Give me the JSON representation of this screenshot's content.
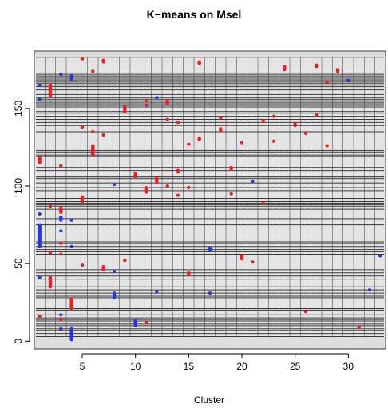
{
  "chart_data": {
    "type": "heatmap",
    "title": "K−means on Msel",
    "xlabel": "Cluster",
    "ylabel": "",
    "xlim": [
      0.5,
      33.5
    ],
    "ylim": [
      -5,
      187
    ],
    "xticks": [
      5,
      10,
      15,
      20,
      25,
      30
    ],
    "yticks": [
      0,
      50,
      100,
      150
    ],
    "grid": true,
    "colors": {
      "background": "#dddddd",
      "panel": "#e4e4e4",
      "line": "#3a3a3a",
      "red": "#e8202a",
      "blue": "#2a35e0"
    },
    "band_edges": [
      3,
      5,
      7,
      8,
      10,
      11,
      13,
      14,
      15,
      17,
      20,
      21,
      28,
      29,
      31,
      33,
      35,
      40,
      42,
      44,
      46,
      56,
      58,
      59,
      61,
      63,
      64,
      75,
      79,
      85,
      87,
      88,
      89,
      90,
      92,
      97,
      99,
      102,
      104,
      105,
      106,
      110,
      112,
      119,
      120,
      122,
      123,
      135,
      139,
      141,
      143,
      145,
      147,
      148,
      151,
      152,
      153,
      154,
      155,
      156,
      157,
      159,
      160,
      162,
      164,
      165,
      166,
      167,
      168,
      169,
      170,
      171,
      172,
      183
    ],
    "marks": [
      {
        "cluster": 1,
        "y0": 16,
        "y1": 16,
        "color": "red"
      },
      {
        "cluster": 1,
        "y0": 41,
        "y1": 41,
        "color": "blue"
      },
      {
        "cluster": 1,
        "y0": 61,
        "y1": 75,
        "color": "blue"
      },
      {
        "cluster": 1,
        "y0": 82,
        "y1": 82,
        "color": "blue"
      },
      {
        "cluster": 1,
        "y0": 115,
        "y1": 118,
        "color": "red"
      },
      {
        "cluster": 1,
        "y0": 156,
        "y1": 156,
        "color": "blue"
      },
      {
        "cluster": 1,
        "y0": 165,
        "y1": 165,
        "color": "blue"
      },
      {
        "cluster": 2,
        "y0": 35,
        "y1": 41,
        "color": "red"
      },
      {
        "cluster": 2,
        "y0": 57,
        "y1": 57,
        "color": "red"
      },
      {
        "cluster": 2,
        "y0": 87,
        "y1": 87,
        "color": "red"
      },
      {
        "cluster": 2,
        "y0": 158,
        "y1": 165,
        "color": "red"
      },
      {
        "cluster": 3,
        "y0": 8,
        "y1": 8,
        "color": "blue"
      },
      {
        "cluster": 3,
        "y0": 14,
        "y1": 14,
        "color": "red"
      },
      {
        "cluster": 3,
        "y0": 17,
        "y1": 17,
        "color": "blue"
      },
      {
        "cluster": 3,
        "y0": 56,
        "y1": 56,
        "color": "red"
      },
      {
        "cluster": 3,
        "y0": 63,
        "y1": 63,
        "color": "red"
      },
      {
        "cluster": 3,
        "y0": 71,
        "y1": 71,
        "color": "blue"
      },
      {
        "cluster": 3,
        "y0": 78,
        "y1": 80,
        "color": "blue"
      },
      {
        "cluster": 3,
        "y0": 83,
        "y1": 86,
        "color": "red"
      },
      {
        "cluster": 3,
        "y0": 113,
        "y1": 113,
        "color": "red"
      },
      {
        "cluster": 3,
        "y0": 172,
        "y1": 172,
        "color": "blue"
      },
      {
        "cluster": 4,
        "y0": 1,
        "y1": 8,
        "color": "blue"
      },
      {
        "cluster": 4,
        "y0": 21,
        "y1": 27,
        "color": "red"
      },
      {
        "cluster": 4,
        "y0": 61,
        "y1": 61,
        "color": "blue"
      },
      {
        "cluster": 4,
        "y0": 78,
        "y1": 78,
        "color": "blue"
      },
      {
        "cluster": 4,
        "y0": 169,
        "y1": 171,
        "color": "blue"
      },
      {
        "cluster": 5,
        "y0": 49,
        "y1": 49,
        "color": "red"
      },
      {
        "cluster": 5,
        "y0": 90,
        "y1": 93,
        "color": "red"
      },
      {
        "cluster": 5,
        "y0": 138,
        "y1": 138,
        "color": "red"
      },
      {
        "cluster": 5,
        "y0": 182,
        "y1": 182,
        "color": "red"
      },
      {
        "cluster": 6,
        "y0": 120,
        "y1": 126,
        "color": "red"
      },
      {
        "cluster": 6,
        "y0": 135,
        "y1": 135,
        "color": "red"
      },
      {
        "cluster": 6,
        "y0": 174,
        "y1": 174,
        "color": "red"
      },
      {
        "cluster": 7,
        "y0": 46,
        "y1": 48,
        "color": "red"
      },
      {
        "cluster": 7,
        "y0": 133,
        "y1": 133,
        "color": "red"
      },
      {
        "cluster": 7,
        "y0": 180,
        "y1": 181,
        "color": "red"
      },
      {
        "cluster": 8,
        "y0": 28,
        "y1": 31,
        "color": "blue"
      },
      {
        "cluster": 8,
        "y0": 45,
        "y1": 45,
        "color": "blue"
      },
      {
        "cluster": 8,
        "y0": 101,
        "y1": 101,
        "color": "blue"
      },
      {
        "cluster": 9,
        "y0": 52,
        "y1": 52,
        "color": "red"
      },
      {
        "cluster": 9,
        "y0": 148,
        "y1": 151,
        "color": "red"
      },
      {
        "cluster": 10,
        "y0": 10,
        "y1": 13,
        "color": "blue"
      },
      {
        "cluster": 10,
        "y0": 106,
        "y1": 108,
        "color": "red"
      },
      {
        "cluster": 11,
        "y0": 12,
        "y1": 12,
        "color": "red"
      },
      {
        "cluster": 11,
        "y0": 96,
        "y1": 99,
        "color": "red"
      },
      {
        "cluster": 11,
        "y0": 152,
        "y1": 152,
        "color": "red"
      },
      {
        "cluster": 11,
        "y0": 155,
        "y1": 155,
        "color": "red"
      },
      {
        "cluster": 12,
        "y0": 32,
        "y1": 32,
        "color": "blue"
      },
      {
        "cluster": 12,
        "y0": 102,
        "y1": 105,
        "color": "red"
      },
      {
        "cluster": 12,
        "y0": 157,
        "y1": 157,
        "color": "blue"
      },
      {
        "cluster": 13,
        "y0": 100,
        "y1": 100,
        "color": "red"
      },
      {
        "cluster": 13,
        "y0": 143,
        "y1": 143,
        "color": "red"
      },
      {
        "cluster": 13,
        "y0": 153,
        "y1": 155,
        "color": "red"
      },
      {
        "cluster": 14,
        "y0": 94,
        "y1": 94,
        "color": "red"
      },
      {
        "cluster": 14,
        "y0": 109,
        "y1": 110,
        "color": "red"
      },
      {
        "cluster": 14,
        "y0": 141,
        "y1": 141,
        "color": "red"
      },
      {
        "cluster": 15,
        "y0": 43,
        "y1": 44,
        "color": "red"
      },
      {
        "cluster": 15,
        "y0": 99,
        "y1": 99,
        "color": "red"
      },
      {
        "cluster": 15,
        "y0": 127,
        "y1": 127,
        "color": "red"
      },
      {
        "cluster": 16,
        "y0": 130,
        "y1": 131,
        "color": "red"
      },
      {
        "cluster": 16,
        "y0": 179,
        "y1": 180,
        "color": "red"
      },
      {
        "cluster": 17,
        "y0": 31,
        "y1": 31,
        "color": "blue"
      },
      {
        "cluster": 17,
        "y0": 59,
        "y1": 60,
        "color": "blue"
      },
      {
        "cluster": 18,
        "y0": 136,
        "y1": 137,
        "color": "red"
      },
      {
        "cluster": 18,
        "y0": 144,
        "y1": 144,
        "color": "red"
      },
      {
        "cluster": 19,
        "y0": 95,
        "y1": 95,
        "color": "red"
      },
      {
        "cluster": 19,
        "y0": 111,
        "y1": 112,
        "color": "red"
      },
      {
        "cluster": 20,
        "y0": 53,
        "y1": 55,
        "color": "red"
      },
      {
        "cluster": 20,
        "y0": 128,
        "y1": 128,
        "color": "red"
      },
      {
        "cluster": 21,
        "y0": 51,
        "y1": 51,
        "color": "red"
      },
      {
        "cluster": 21,
        "y0": 103,
        "y1": 103,
        "color": "blue"
      },
      {
        "cluster": 22,
        "y0": 89,
        "y1": 89,
        "color": "red"
      },
      {
        "cluster": 22,
        "y0": 142,
        "y1": 142,
        "color": "red"
      },
      {
        "cluster": 23,
        "y0": 129,
        "y1": 129,
        "color": "red"
      },
      {
        "cluster": 23,
        "y0": 145,
        "y1": 145,
        "color": "red"
      },
      {
        "cluster": 24,
        "y0": 175,
        "y1": 177,
        "color": "red"
      },
      {
        "cluster": 25,
        "y0": 139,
        "y1": 140,
        "color": "red"
      },
      {
        "cluster": 26,
        "y0": 19,
        "y1": 19,
        "color": "red"
      },
      {
        "cluster": 26,
        "y0": 134,
        "y1": 134,
        "color": "red"
      },
      {
        "cluster": 27,
        "y0": 146,
        "y1": 146,
        "color": "red"
      },
      {
        "cluster": 27,
        "y0": 177,
        "y1": 178,
        "color": "red"
      },
      {
        "cluster": 28,
        "y0": 126,
        "y1": 126,
        "color": "red"
      },
      {
        "cluster": 28,
        "y0": 167,
        "y1": 167,
        "color": "red"
      },
      {
        "cluster": 29,
        "y0": 174,
        "y1": 175,
        "color": "red"
      },
      {
        "cluster": 30,
        "y0": 168,
        "y1": 168,
        "color": "blue"
      },
      {
        "cluster": 31,
        "y0": 9,
        "y1": 9,
        "color": "red"
      },
      {
        "cluster": 32,
        "y0": 33,
        "y1": 33,
        "color": "blue"
      },
      {
        "cluster": 33,
        "y0": 55,
        "y1": 55,
        "color": "blue"
      }
    ]
  }
}
